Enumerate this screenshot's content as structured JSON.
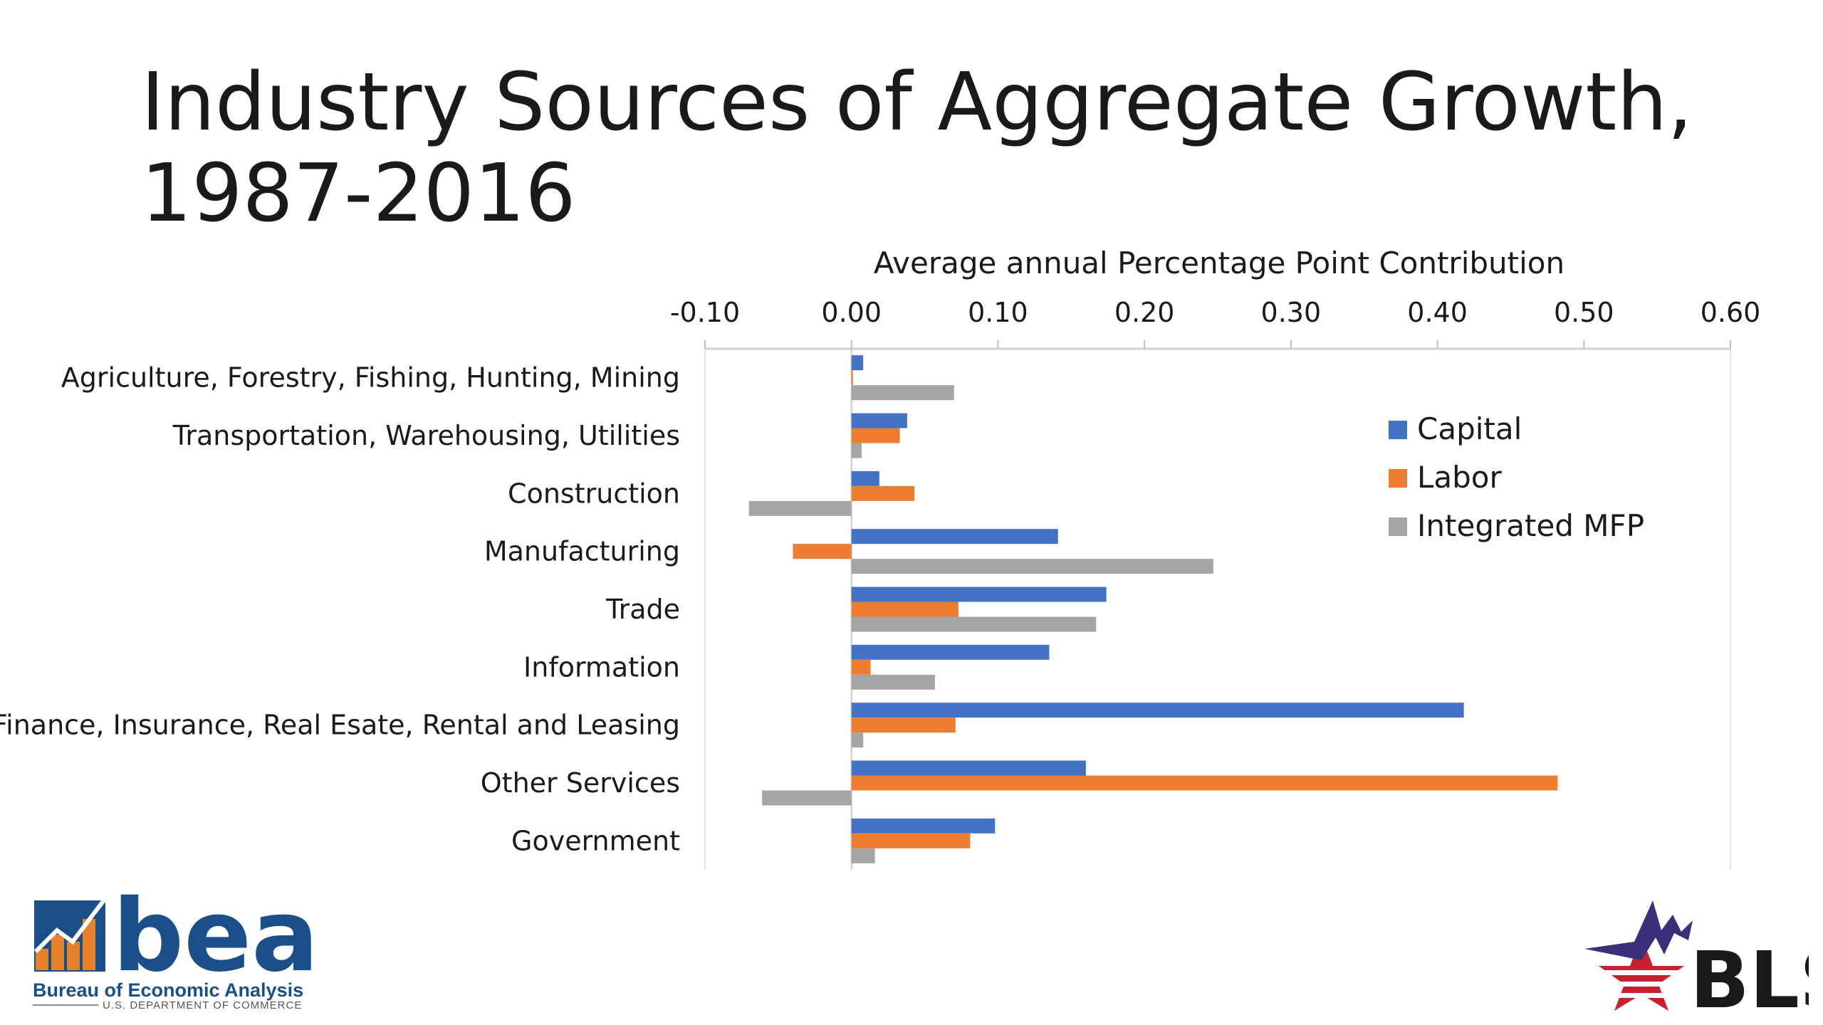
{
  "title": "Industry Sources of Aggregate Growth, 1987-2016",
  "chart_data": {
    "type": "bar",
    "orientation": "horizontal",
    "title": "Industry Sources of Aggregate Growth, 1987-2016",
    "xlabel": "Average annual Percentage Point Contribution",
    "ylabel": "",
    "xlim": [
      -0.1,
      0.6
    ],
    "xticks": [
      -0.1,
      0,
      0.1,
      0.2,
      0.3,
      0.4,
      0.5,
      0.6
    ],
    "xtick_labels": [
      "-0.10",
      "0.00",
      "0.10",
      "0.20",
      "0.30",
      "0.40",
      "0.50",
      "0.60"
    ],
    "x_axis_position": "top",
    "grid": false,
    "legend_position": "right",
    "categories": [
      "Agriculture, Forestry, Fishing, Hunting, Mining",
      "Transportation, Warehousing, Utilities",
      "Construction",
      "Manufacturing",
      "Trade",
      "Information",
      "Finance, Insurance, Real Esate, Rental and Leasing",
      "Other Services",
      "Government"
    ],
    "series": [
      {
        "name": "Capital",
        "color": "#4472c4",
        "values": [
          0.008,
          0.038,
          0.019,
          0.141,
          0.174,
          0.135,
          0.418,
          0.16,
          0.098
        ]
      },
      {
        "name": "Labor",
        "color": "#ed7d31",
        "values": [
          0.001,
          0.033,
          0.043,
          -0.04,
          0.073,
          0.013,
          0.071,
          0.482,
          0.081
        ]
      },
      {
        "name": "Integrated MFP",
        "color": "#a5a5a5",
        "values": [
          0.07,
          0.007,
          -0.07,
          0.247,
          0.167,
          0.057,
          0.008,
          -0.061,
          0.016
        ]
      }
    ]
  },
  "logos": {
    "bea": {
      "name": "bea",
      "subtitle": "Bureau of Economic Analysis",
      "dept": "U.S. DEPARTMENT OF COMMERCE"
    },
    "bls": {
      "name": "BLS"
    }
  }
}
